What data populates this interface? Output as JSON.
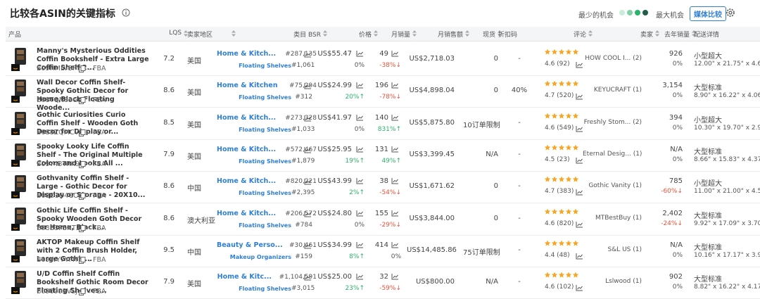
{
  "header": {
    "title": "比较各ASIN的关键指标",
    "min_label": "最少的机会",
    "max_label": "最大机会",
    "button": "媒体比较"
  },
  "table": {
    "columns": [
      "产品",
      "LQS",
      "卖家地区",
      "类目 BSR",
      "价格",
      "月销量",
      "月销售额",
      "现货",
      "折扣码",
      "评论",
      "卖家",
      "去年销量",
      "配送详情"
    ],
    "rows": [
      {
        "title": "Manny's Mysterious Oddities Coffin Bookshelf - Extra Large Coffin Shelf 2...",
        "asin": "B09HMLVSFY",
        "fulfillment": "FBA",
        "lqs": "7.2",
        "region": "美国",
        "bsr_category": "Home & Kitch...",
        "bsr_rank": "#287,135",
        "sub_category": "Floating Shelves",
        "sub_rank": "#1,061",
        "price": "US$55.47",
        "price_change": "0%",
        "sales": "49",
        "sales_change": "-38%↓",
        "revenue": "US$2,718.03",
        "stock": "0",
        "discount": "-",
        "rating": "4.6 (92)",
        "seller": "HOW COOL I... (2)",
        "last_year": "926",
        "last_year_change": "0%",
        "size_tier": "小型超大",
        "dimensions": "12.00\" x 21.75\" x 4.6"
      },
      {
        "title": "Wall Decor Coffin Shelf- Spooky Gothic Decor for Home,Black Floating Woode...",
        "asin": "B08TQN83GL",
        "fulfillment": "FBA",
        "lqs": "8.6",
        "region": "美国",
        "bsr_category": "Home & Kitchen",
        "bsr_rank": "#75,294",
        "sub_category": "Floating Shelves",
        "sub_rank": "#312",
        "price": "US$24.99",
        "price_change": "20%↑",
        "sales": "196",
        "sales_change": "-78%↓",
        "revenue": "US$4,898.04",
        "stock": "0",
        "discount": "40%",
        "rating": "4.7 (520)",
        "seller": "KEYUCRAFT (1)",
        "last_year": "3,154",
        "last_year_change": "0%",
        "size_tier": "大型标准",
        "dimensions": "8.90\" x 16.22\" x 4.06"
      },
      {
        "title": "Gothic Curiosities Curio Coffin Shelf - Wooden Goth Decor for Display or...",
        "asin": "B088ZQMCVH",
        "fulfillment": "FBA",
        "lqs": "8.5",
        "region": "美国",
        "bsr_category": "Home & Kitch...",
        "bsr_rank": "#273,328",
        "sub_category": "Floating Shelves",
        "sub_rank": "#1,033",
        "price": "US$41.97",
        "price_change": "0%",
        "sales": "140",
        "sales_change": "831%↑",
        "revenue": "US$5,875.80",
        "stock": "10订单限制",
        "discount": "-",
        "rating": "4.6 (549)",
        "seller": "Freshly Stom... (2)",
        "last_year": "394",
        "last_year_change": "0%",
        "size_tier": "小型超大",
        "dimensions": "10.30\" x 19.70\" x 2.9"
      },
      {
        "title": "Spooky Looky Life Coffin Shelf - The Original Multiple Colors and Looks All ...",
        "asin": "B09Y43TRK9",
        "fulfillment": "FBA",
        "lqs": "7.9",
        "region": "美国",
        "bsr_category": "Home & Kitch...",
        "bsr_rank": "#572,467",
        "sub_category": "Floating Shelves",
        "sub_rank": "#1,879",
        "price": "US$25.95",
        "price_change": "19%↑",
        "sales": "131",
        "sales_change": "49%↑",
        "revenue": "US$3,399.45",
        "stock": "N/A",
        "discount": "-",
        "rating": "4.5 (23)",
        "seller": "Eternal Desig... (1)",
        "last_year": "N/A",
        "last_year_change": "0%",
        "size_tier": "大型标准",
        "dimensions": "8.66\" x 15.83\" x 4.37"
      },
      {
        "title": "Gothvanity Coffin Shelf - Large - Gothic Decor for Display or Storage - 20X10...",
        "asin": "B08D3D4CCG",
        "fulfillment": "FBA",
        "lqs": "8.6",
        "region": "中国",
        "bsr_category": "Home & Kitch...",
        "bsr_rank": "#820,221",
        "sub_category": "Floating Shelves",
        "sub_rank": "#2,395",
        "price": "US$43.99",
        "price_change": "2%↑",
        "sales": "38",
        "sales_change": "-54%↓",
        "revenue": "US$1,671.62",
        "stock": "0",
        "discount": "-",
        "rating": "4.7 (383)",
        "seller": "Gothic Vanity (1)",
        "last_year": "785",
        "last_year_change": "-60%↓",
        "size_tier": "小型超大",
        "dimensions": "11.00\" x 21.00\" x 4.5"
      },
      {
        "title": "Gothic Life Coffin Shelf - Spooky Wooden Goth Decor for Home, Black...",
        "asin": "B08B3PSNT2",
        "fulfillment": "FBA",
        "lqs": "8.6",
        "region": "澳大利亚",
        "bsr_category": "Home & Kitch...",
        "bsr_rank": "#206,572",
        "sub_category": "Floating Shelves",
        "sub_rank": "#784",
        "price": "US$24.80",
        "price_change": "0%",
        "sales": "155",
        "sales_change": "-29%↓",
        "revenue": "US$3,844.00",
        "stock": "0",
        "discount": "-",
        "rating": "4.6 (820)",
        "seller": "MTBestBuy (1)",
        "last_year": "2,402",
        "last_year_change": "-24%↓",
        "size_tier": "大型标准",
        "dimensions": "9.92\" x 17.09\" x 3.70"
      },
      {
        "title": "AKTOP Makeup Coffin Shelf with 2 Coffin Brush Holder, Large Gothic...",
        "asin": "B09WY7YFHT",
        "fulfillment": "FBA",
        "lqs": "9.5",
        "region": "中国",
        "bsr_category": "Beauty & Perso...",
        "bsr_rank": "#30,461",
        "sub_category": "Makeup Organizers",
        "sub_rank": "#159",
        "price": "US$34.99",
        "price_change": "8%↑",
        "sales": "414",
        "sales_change": "0%",
        "revenue": "US$14,485.86",
        "stock": "75订单限制",
        "discount": "-",
        "rating": "4.4 (48)",
        "seller": "S&L US (1)",
        "last_year": "N/A",
        "last_year_change": "0%",
        "size_tier": "大型标准",
        "dimensions": "10.16\" x 17.17\" x 3.9"
      },
      {
        "title": "U/D Coffin Shelf Coffin Bookshelf Gothic Room Decor Floating Shelves...",
        "asin": "B096992VSJ",
        "fulfillment": "FBA",
        "lqs": "7.9",
        "region": "美国",
        "bsr_category": "Home & Kitc...",
        "bsr_rank": "#1,104,591",
        "sub_category": "Floating Shelves",
        "sub_rank": "#3,015",
        "price": "US$25.00",
        "price_change": "23%↑",
        "sales": "32",
        "sales_change": "-59%↓",
        "revenue": "US$800.00",
        "stock": "N/A",
        "discount": "-",
        "rating": "4.6 (102)",
        "seller": "Lslwood (1)",
        "last_year": "902",
        "last_year_change": "0%",
        "size_tier": "大型标准",
        "dimensions": "8.82\" x 16.22\" x 4.17"
      }
    ]
  }
}
